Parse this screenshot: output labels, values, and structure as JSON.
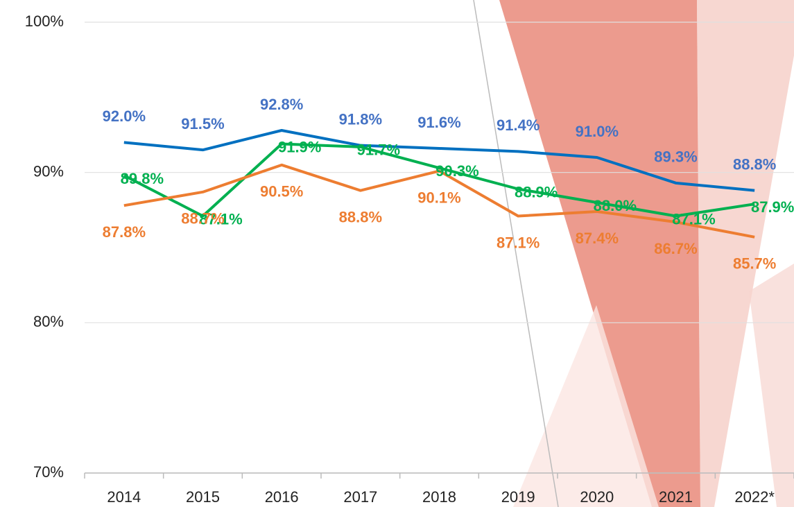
{
  "chart_data": {
    "type": "line",
    "categories": [
      "2014",
      "2015",
      "2016",
      "2017",
      "2018",
      "2019",
      "2020",
      "2021",
      "2022*"
    ],
    "ylim": [
      70,
      100
    ],
    "yticks": [
      {
        "value": 70,
        "label": "70%"
      },
      {
        "value": 80,
        "label": "80%"
      },
      {
        "value": 90,
        "label": "90%"
      },
      {
        "value": 100,
        "label": "100%"
      }
    ],
    "grid": true,
    "series": [
      {
        "color": "#0070c0",
        "label_color": "#4472c4",
        "values": [
          92.0,
          91.5,
          92.8,
          91.8,
          91.6,
          91.4,
          91.0,
          89.3,
          88.8
        ],
        "value_labels": [
          "92.0%",
          "91.5%",
          "92.8%",
          "91.8%",
          "91.6%",
          "91.4%",
          "91.0%",
          "89.3%",
          "88.8%"
        ]
      },
      {
        "color": "#00b050",
        "label_color": "#00b050",
        "values": [
          89.8,
          87.1,
          91.9,
          91.7,
          90.3,
          88.9,
          88.0,
          87.1,
          87.9
        ],
        "value_labels": [
          "89.8%",
          "87.1%",
          "91.9%",
          "91.7%",
          "90.3%",
          "88.9%",
          "88.0%",
          "87.1%",
          "87.9%"
        ]
      },
      {
        "color": "#ed7d31",
        "label_color": "#ed7d31",
        "values": [
          87.8,
          88.7,
          90.5,
          88.8,
          90.1,
          87.1,
          87.4,
          86.7,
          85.7
        ],
        "value_labels": [
          "87.8%",
          "88.7%",
          "90.5%",
          "88.8%",
          "90.1%",
          "87.1%",
          "87.4%",
          "86.7%",
          "85.7%"
        ]
      }
    ]
  }
}
